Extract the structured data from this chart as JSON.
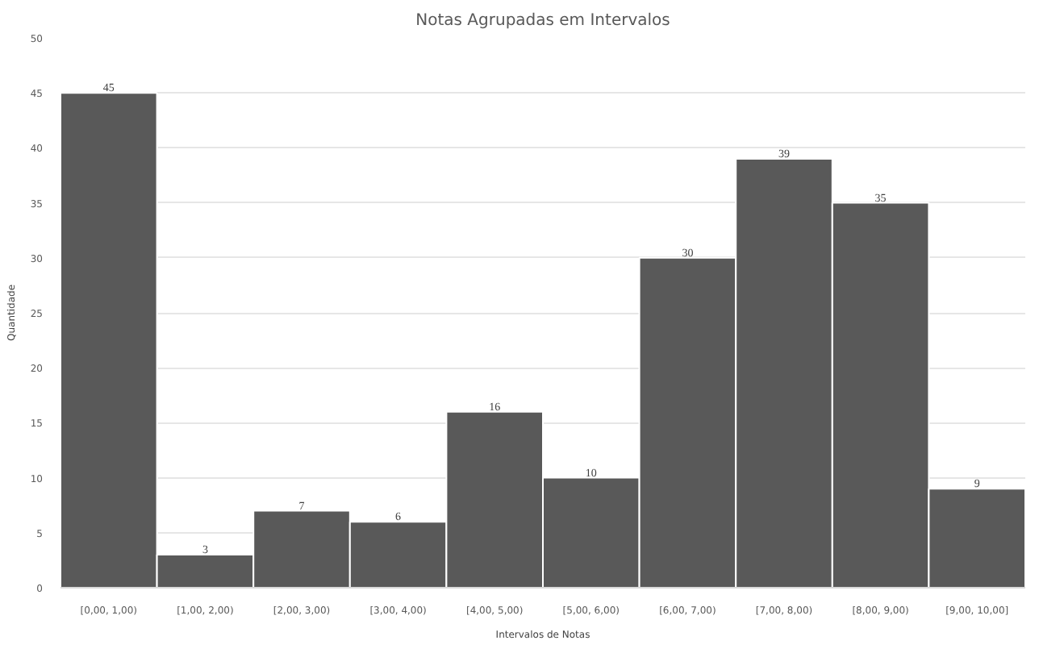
{
  "chart_data": {
    "type": "bar",
    "title": "Notas Agrupadas em Intervalos",
    "xlabel": "Intervalos de Notas",
    "ylabel": "Quantidade",
    "categories": [
      "[0,00, 1,00)",
      "[1,00, 2,00)",
      "[2,00, 3,00)",
      "[3,00, 4,00)",
      "[4,00, 5,00)",
      "[5,00, 6,00)",
      "[6,00, 7,00)",
      "[7,00, 8,00)",
      "[8,00, 9,00)",
      "[9,00, 10,00]"
    ],
    "values": [
      45,
      3,
      7,
      6,
      16,
      10,
      30,
      39,
      35,
      9
    ],
    "color": "#595959",
    "ylim": [
      0,
      50
    ],
    "yticks": [
      0,
      5,
      10,
      15,
      20,
      25,
      30,
      35,
      40,
      45,
      50
    ],
    "grid": "y",
    "data_labels": true
  }
}
